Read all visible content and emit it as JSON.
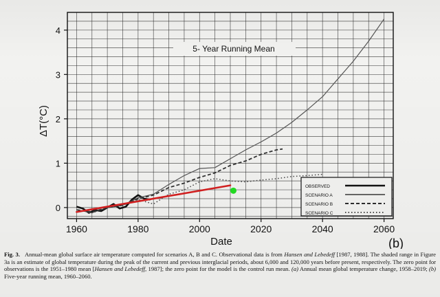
{
  "chart_data": {
    "type": "line",
    "title": "5- Year Running Mean",
    "xlabel": "Date",
    "ylabel": "ΔT(°C)",
    "xlim": [
      1957,
      2063
    ],
    "ylim": [
      -0.25,
      4.4
    ],
    "x_ticks": [
      1960,
      1980,
      2000,
      2020,
      2040,
      2060
    ],
    "y_ticks": [
      0,
      1,
      2,
      3,
      4
    ],
    "grid": true,
    "legend_position": "bottom-right",
    "panel_label": "(b)",
    "series": [
      {
        "name": "OBSERVED",
        "style": "solid-thick",
        "color": "#111111",
        "x": [
          1960,
          1962,
          1964,
          1966,
          1968,
          1970,
          1972,
          1974,
          1976,
          1978,
          1980,
          1982,
          1984
        ],
        "y": [
          0.02,
          -0.02,
          -0.12,
          -0.06,
          -0.08,
          0.0,
          0.08,
          -0.02,
          0.02,
          0.18,
          0.28,
          0.2,
          0.18
        ]
      },
      {
        "name": "SCENARIO A",
        "style": "solid-thin",
        "color": "#555555",
        "x": [
          1960,
          1965,
          1970,
          1975,
          1980,
          1985,
          1990,
          1995,
          2000,
          2005,
          2010,
          2015,
          2020,
          2025,
          2030,
          2035,
          2040,
          2045,
          2050,
          2055,
          2060
        ],
        "y": [
          -0.05,
          -0.12,
          0.0,
          0.05,
          0.22,
          0.3,
          0.52,
          0.72,
          0.88,
          0.9,
          1.1,
          1.3,
          1.48,
          1.68,
          1.92,
          2.2,
          2.5,
          2.9,
          3.3,
          3.75,
          4.25
        ]
      },
      {
        "name": "SCENARIO B",
        "style": "dashed",
        "color": "#333333",
        "x": [
          1960,
          1965,
          1970,
          1975,
          1980,
          1985,
          1990,
          1995,
          2000,
          2005,
          2010,
          2015,
          2020,
          2025,
          2027
        ],
        "y": [
          -0.05,
          -0.1,
          0.0,
          0.05,
          0.2,
          0.28,
          0.45,
          0.55,
          0.68,
          0.78,
          0.95,
          1.05,
          1.2,
          1.3,
          1.32
        ]
      },
      {
        "name": "SCENARIO C",
        "style": "dotted",
        "color": "#444444",
        "x": [
          1960,
          1965,
          1970,
          1975,
          1980,
          1985,
          1990,
          1995,
          2000,
          2005,
          2010,
          2015,
          2020,
          2025,
          2030,
          2035,
          2040
        ],
        "y": [
          -0.05,
          -0.12,
          0.0,
          0.05,
          0.18,
          0.08,
          0.3,
          0.4,
          0.58,
          0.65,
          0.6,
          0.58,
          0.62,
          0.65,
          0.7,
          0.72,
          0.75
        ]
      }
    ],
    "overlays": [
      {
        "kind": "trend-line",
        "color": "#d42020",
        "x": [
          1960,
          2010
        ],
        "y": [
          -0.1,
          0.5
        ]
      },
      {
        "kind": "marker",
        "color": "#22dd22",
        "x": [
          2011
        ],
        "y": [
          0.38
        ]
      }
    ]
  },
  "legend": {
    "items": [
      "OBSERVED",
      "SCENARIO A",
      "SCENARIO B",
      "SCENARIO C"
    ]
  },
  "caption": {
    "fig_label": "Fig. 3.",
    "line1": "Annual-mean global surface air temperature computed for scenarios A, B and C.  Observational data is from",
    "cite1": "Hansen and Lebedeff",
    "line2a": "[1987, 1988].  The shaded range in Figure 3a is an estimate of global temperature during the",
    "line3": "peak of the current and previous interglacial periods, about 6,000 and 120,000 years before present, respectively.  The",
    "line4a": "zero point for observations is the 1951–1980 mean [",
    "cite2": "Hansen and Lebedeff,",
    "line4b": "1987]; the zero point for the model is the",
    "line5a": "control run mean.",
    "part_a": "(a)",
    "line5b": "Annual mean global temperature change, 1958–2019;",
    "part_b": "(b)",
    "line5c": "Five-year running mean, 1960–2060."
  },
  "colors": {
    "background": "#f2f2f0",
    "trend": "#d42020",
    "marker": "#22dd22"
  }
}
